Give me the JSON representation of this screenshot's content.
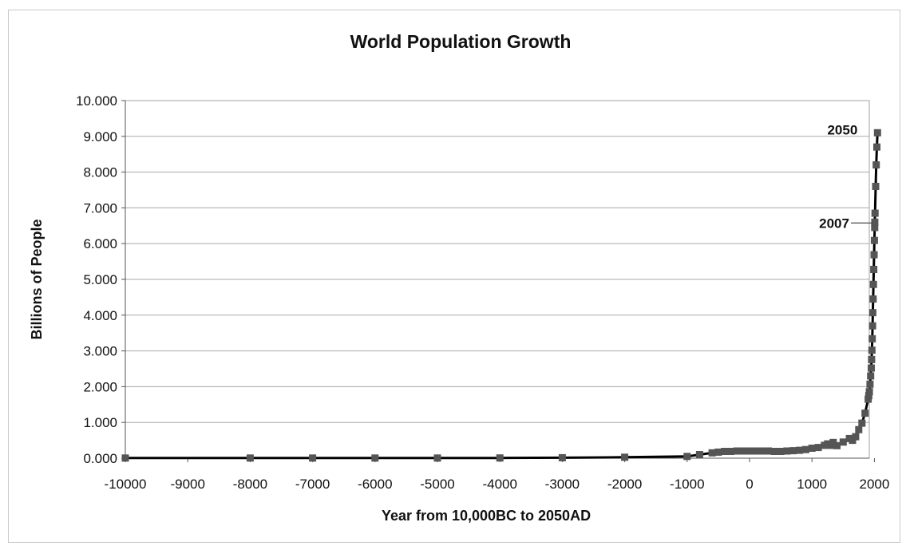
{
  "chart_data": {
    "type": "line",
    "title": "World Population Growth",
    "xlabel": "Year from 10,000BC to 2050AD",
    "ylabel": "Billions of People",
    "xlim": [
      -10000,
      2050
    ],
    "ylim": [
      0,
      10
    ],
    "x_ticks": [
      "-10000",
      "-9000",
      "-8000",
      "-7000",
      "-6000",
      "-5000",
      "-4000",
      "-3000",
      "-2000",
      "-1000",
      "0",
      "1000",
      "2000"
    ],
    "y_ticks": [
      "0.000",
      "1.000",
      "2.000",
      "3.000",
      "4.000",
      "5.000",
      "6.000",
      "7.000",
      "8.000",
      "9.000",
      "10.000"
    ],
    "grid": "horizontal",
    "marker": "square",
    "line_color": "#000000",
    "marker_color": "#555555",
    "series": [
      {
        "x": [
          -10000,
          -8000,
          -7000,
          -6000,
          -5000,
          -4000,
          -3000,
          -2000,
          -1000,
          -800,
          -600,
          -500,
          -400,
          -300,
          -200,
          -100,
          1,
          100,
          200,
          300,
          400,
          500,
          600,
          700,
          800,
          900,
          1000,
          1100,
          1200,
          1250,
          1300,
          1340,
          1400,
          1500,
          1600,
          1650,
          1700,
          1750,
          1800,
          1850,
          1900,
          1910,
          1920,
          1930,
          1940,
          1950,
          1955,
          1960,
          1965,
          1970,
          1975,
          1980,
          1985,
          1990,
          1995,
          2000,
          2005,
          2007,
          2010,
          2020,
          2030,
          2040,
          2050
        ],
        "y": [
          0.004,
          0.005,
          0.005,
          0.005,
          0.005,
          0.007,
          0.014,
          0.027,
          0.05,
          0.1,
          0.15,
          0.17,
          0.19,
          0.19,
          0.2,
          0.2,
          0.2,
          0.2,
          0.2,
          0.2,
          0.19,
          0.19,
          0.2,
          0.21,
          0.22,
          0.24,
          0.28,
          0.3,
          0.36,
          0.4,
          0.36,
          0.44,
          0.35,
          0.45,
          0.55,
          0.5,
          0.6,
          0.8,
          0.98,
          1.26,
          1.65,
          1.75,
          1.86,
          2.07,
          2.3,
          2.52,
          2.76,
          3.02,
          3.34,
          3.7,
          4.07,
          4.45,
          4.86,
          5.28,
          5.69,
          6.09,
          6.45,
          6.6,
          6.85,
          7.6,
          8.2,
          8.7,
          9.1
        ]
      }
    ],
    "annotations": [
      {
        "text": "2050",
        "x": 2050,
        "y": 9.1
      },
      {
        "text": "2007",
        "x": 2007,
        "y": 6.6
      }
    ]
  }
}
